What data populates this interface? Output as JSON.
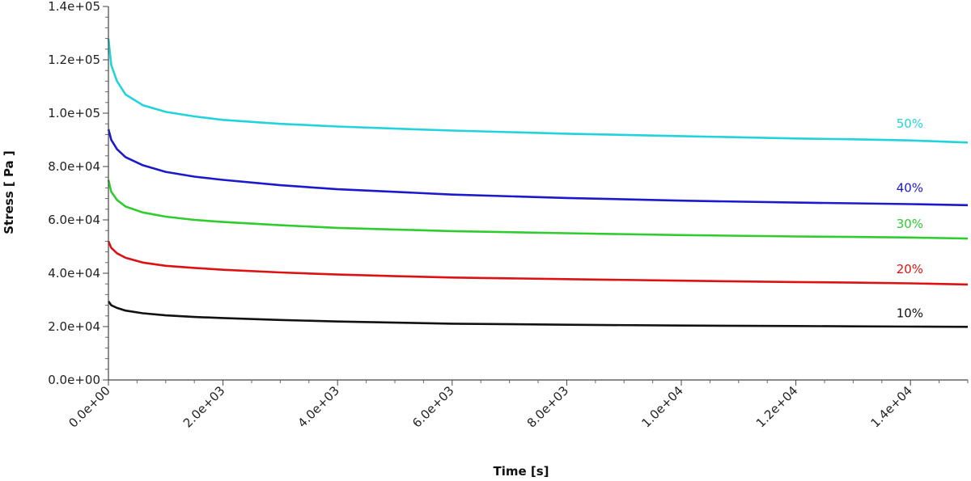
{
  "chart_data": {
    "type": "line",
    "title": "",
    "xlabel": "Time [s]",
    "ylabel": "Stress [ Pa ]",
    "xlim": [
      0,
      15000
    ],
    "ylim": [
      0,
      140000
    ],
    "x_ticks": [
      0,
      2000,
      4000,
      6000,
      8000,
      10000,
      12000,
      14000
    ],
    "x_tick_labels": [
      "0.0e+00",
      "2.0e+03",
      "4.0e+03",
      "6.0e+03",
      "8.0e+03",
      "1.0e+04",
      "1.2e+04",
      "1.4e+04"
    ],
    "y_ticks": [
      0,
      20000,
      40000,
      60000,
      80000,
      100000,
      120000,
      140000
    ],
    "y_tick_labels": [
      "0.0e+00",
      "2.0e+04",
      "4.0e+04",
      "6.0e+04",
      "8.0e+04",
      "1.0e+05",
      "1.2e+05",
      "1.4e+05"
    ],
    "grid": false,
    "legend": "none",
    "series": [
      {
        "name": "50%",
        "color": "#22d3dc",
        "label_at": [
          13000,
          96000
        ],
        "x": [
          0,
          50,
          150,
          300,
          600,
          1000,
          1500,
          2000,
          3000,
          4000,
          5000,
          6000,
          8000,
          10000,
          12000,
          13000,
          14000,
          15000
        ],
        "y": [
          128000,
          118000,
          112000,
          107000,
          103000,
          100500,
          98800,
          97500,
          96000,
          95000,
          94200,
          93500,
          92300,
          91400,
          90500,
          90200,
          89800,
          89000
        ]
      },
      {
        "name": "40%",
        "color": "#1a1acc",
        "label_at": [
          13000,
          72000
        ],
        "x": [
          0,
          50,
          150,
          300,
          600,
          1000,
          1500,
          2000,
          3000,
          4000,
          5000,
          6000,
          8000,
          10000,
          12000,
          13000,
          14000,
          15000
        ],
        "y": [
          94000,
          90000,
          86500,
          83500,
          80500,
          78000,
          76200,
          75000,
          73000,
          71500,
          70500,
          69500,
          68200,
          67200,
          66500,
          66200,
          65900,
          65500
        ]
      },
      {
        "name": "30%",
        "color": "#2ecc2e",
        "label_at": [
          13000,
          58500
        ],
        "x": [
          0,
          50,
          150,
          300,
          600,
          1000,
          1500,
          2000,
          3000,
          4000,
          5000,
          6000,
          8000,
          10000,
          12000,
          13000,
          14000,
          15000
        ],
        "y": [
          75000,
          70500,
          67500,
          65000,
          62800,
          61200,
          60000,
          59200,
          58000,
          57000,
          56400,
          55800,
          55000,
          54300,
          53800,
          53600,
          53400,
          53000
        ]
      },
      {
        "name": "20%",
        "color": "#dd1111",
        "label_at": [
          13000,
          41500
        ],
        "x": [
          0,
          50,
          150,
          300,
          600,
          1000,
          1500,
          2000,
          3000,
          4000,
          5000,
          6000,
          8000,
          10000,
          12000,
          13000,
          14000,
          15000
        ],
        "y": [
          52000,
          49500,
          47500,
          45800,
          44000,
          42800,
          42000,
          41300,
          40300,
          39500,
          38900,
          38400,
          37800,
          37200,
          36700,
          36500,
          36200,
          35800
        ]
      },
      {
        "name": "10%",
        "color": "#111111",
        "label_at": [
          13000,
          25000
        ],
        "x": [
          0,
          50,
          150,
          300,
          600,
          1000,
          1500,
          2000,
          3000,
          4000,
          5000,
          6000,
          8000,
          10000,
          12000,
          13000,
          14000,
          15000
        ],
        "y": [
          29500,
          28000,
          27000,
          26000,
          25000,
          24200,
          23600,
          23200,
          22500,
          21900,
          21500,
          21100,
          20700,
          20400,
          20200,
          20100,
          20000,
          19900
        ]
      }
    ]
  }
}
